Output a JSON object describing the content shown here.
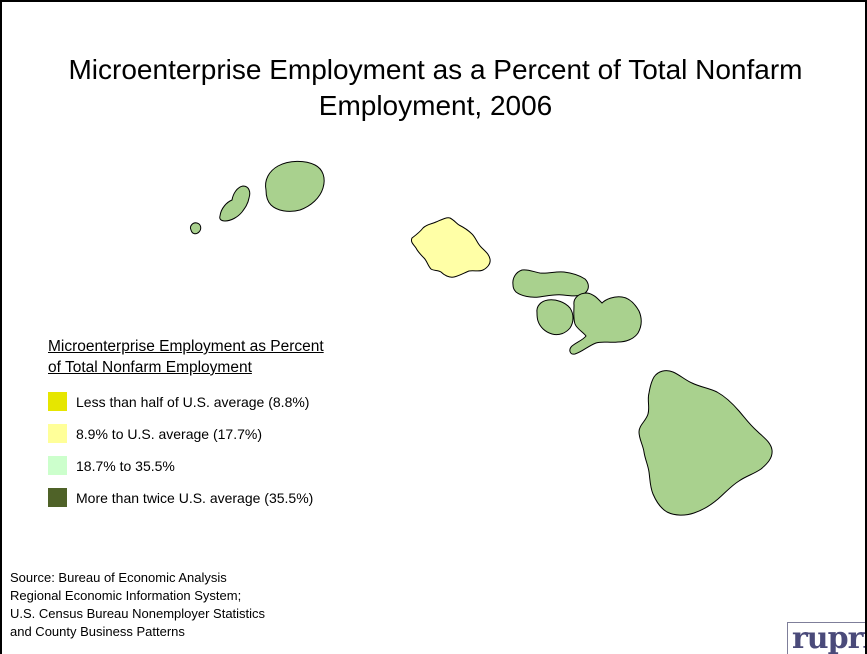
{
  "title": {
    "line1": "Microenterprise Employment as a Percent of Total Nonfarm",
    "line2": "Employment, 2006"
  },
  "legend": {
    "title_line1": "Microenterprise Employment as Percent",
    "title_line2": "of Total Nonfarm Employment",
    "items": [
      {
        "label": "Less than half of U.S. average (8.8%)",
        "color": "#e6e600"
      },
      {
        "label": "8.9% to U.S. average (17.7%)",
        "color": "#ffff99"
      },
      {
        "label": "18.7% to 35.5%",
        "color": "#ccffcc"
      },
      {
        "label": "More than twice U.S. average (35.5%)",
        "color": "#4f6228"
      }
    ]
  },
  "map": {
    "regions": [
      {
        "name": "Niihau",
        "category": "18.7% to 35.5%",
        "color": "#a9d18e"
      },
      {
        "name": "Kauai",
        "category": "18.7% to 35.5%",
        "color": "#a9d18e"
      },
      {
        "name": "Oahu",
        "category": "8.9% to U.S. average (17.7%)",
        "color": "#ffffa6"
      },
      {
        "name": "Molokai",
        "category": "18.7% to 35.5%",
        "color": "#a9d18e"
      },
      {
        "name": "Lanai",
        "category": "18.7% to 35.5%",
        "color": "#a9d18e"
      },
      {
        "name": "Maui",
        "category": "18.7% to 35.5%",
        "color": "#a9d18e"
      },
      {
        "name": "Hawaii",
        "category": "18.7% to 35.5%",
        "color": "#a9d18e"
      }
    ]
  },
  "source": {
    "line1": "Source: Bureau of Economic Analysis",
    "line2": "Regional Economic Information System;",
    "line3": "U.S. Census Bureau Nonemployer Statistics",
    "line4": "and County Business Patterns"
  },
  "logo": {
    "text": "rupri"
  }
}
